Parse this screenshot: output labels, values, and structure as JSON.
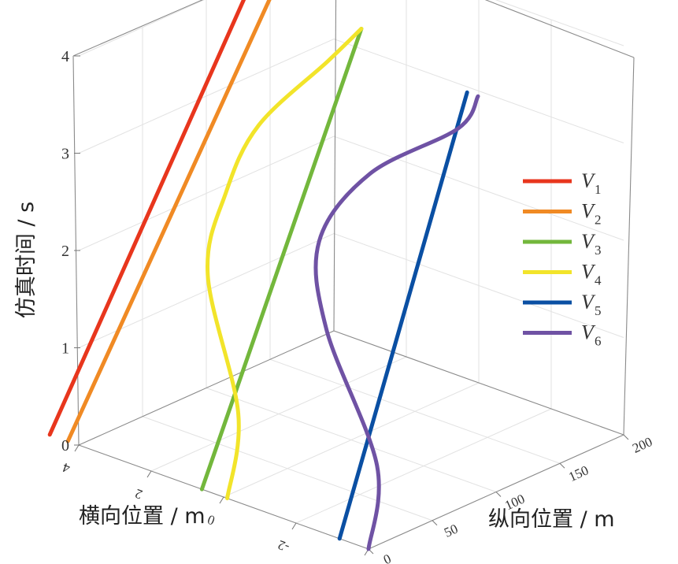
{
  "chart_data": {
    "type": "line",
    "projection": "3d",
    "axes": {
      "z": {
        "label": "仿真时间 / s",
        "ticks": [
          "0",
          "1",
          "2",
          "3",
          "4"
        ],
        "range": [
          0,
          4
        ]
      },
      "x": {
        "label": "横向位置 / m",
        "ticks": [
          "4",
          "2",
          "0",
          "-2",
          "-4"
        ],
        "range": [
          -4,
          4
        ]
      },
      "y": {
        "label": "纵向位置 / m",
        "ticks": [
          "0",
          "50",
          "100",
          "150",
          "200"
        ],
        "range": [
          0,
          200
        ]
      }
    },
    "grid": true,
    "legend_position": "right",
    "series": [
      {
        "name": "V",
        "sub": "1",
        "color": "#e8361d",
        "lateral": [
          4.8,
          4.8
        ],
        "longitudinal": [
          0,
          170
        ],
        "time": [
          0,
          4.0
        ]
      },
      {
        "name": "V",
        "sub": "2",
        "color": "#f08a24",
        "lateral": [
          4.3,
          4.3
        ],
        "longitudinal": [
          0,
          175
        ],
        "time": [
          0,
          4.0
        ]
      },
      {
        "name": "V",
        "sub": "3",
        "color": "#73b73c",
        "lateral": [
          0.6,
          0.6
        ],
        "longitudinal": [
          0,
          125
        ],
        "time": [
          0,
          4.0
        ]
      },
      {
        "name": "V",
        "sub": "4",
        "color": "#f2e42a",
        "lateral": [
          -0.1,
          0.3,
          2.2,
          2.4,
          2.2,
          1.0,
          0.6
        ],
        "longitudinal": [
          0,
          20,
          50,
          70,
          90,
          110,
          125
        ],
        "time": [
          0,
          0.7,
          1.7,
          2.4,
          3.0,
          3.7,
          4.0
        ]
      },
      {
        "name": "V",
        "sub": "5",
        "color": "#0a4fa3",
        "lateral": [
          -3.2,
          -3.2
        ],
        "longitudinal": [
          0,
          100
        ],
        "time": [
          0,
          4.0
        ]
      },
      {
        "name": "V",
        "sub": "6",
        "color": "#6f52a4",
        "lateral": [
          -4.0,
          -3.6,
          -1.5,
          -0.7,
          -1.5,
          -3.3,
          -3.5
        ],
        "longitudinal": [
          0,
          18,
          38,
          55,
          72,
          90,
          100
        ],
        "time": [
          0,
          0.7,
          1.7,
          2.4,
          3.1,
          3.7,
          4.0
        ]
      }
    ]
  }
}
